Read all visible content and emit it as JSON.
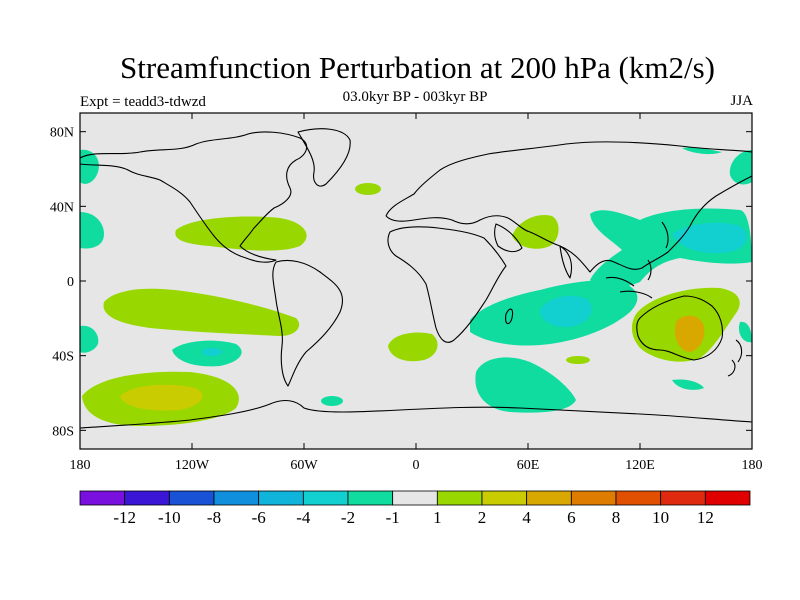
{
  "title": "Streamfunction Perturbation at 200 hPa (km2/s)",
  "subtitle": "03.0kyr BP - 003kyr BP",
  "experiment": "Expt = teadd3-tdwzd",
  "season": "JJA",
  "axes": {
    "x_ticks": [
      "180",
      "120W",
      "60W",
      "0",
      "60E",
      "120E",
      "180"
    ],
    "y_ticks": [
      "80N",
      "40N",
      "0",
      "40S",
      "80S"
    ]
  },
  "colorbar": {
    "colors": [
      "#7a10de",
      "#3b16d6",
      "#1a52d6",
      "#0f8fdc",
      "#10b4da",
      "#12cfd0",
      "#10dca0",
      "#e6e6e6",
      "#98d800",
      "#c8cc00",
      "#d8a800",
      "#de7c00",
      "#e05000",
      "#e02a10",
      "#e00000"
    ],
    "labels": [
      "-12",
      "-10",
      "-8",
      "-6",
      "-4",
      "-2",
      "-1",
      "1",
      "2",
      "4",
      "6",
      "8",
      "10",
      "12"
    ]
  },
  "colors": {
    "background": "#e6e6e6",
    "positive_weak": "#98d800",
    "positive_mid": "#c8cc00",
    "positive_strong": "#d8a800",
    "negative_weak": "#10dca0",
    "negative_mid": "#12cfd0"
  }
}
